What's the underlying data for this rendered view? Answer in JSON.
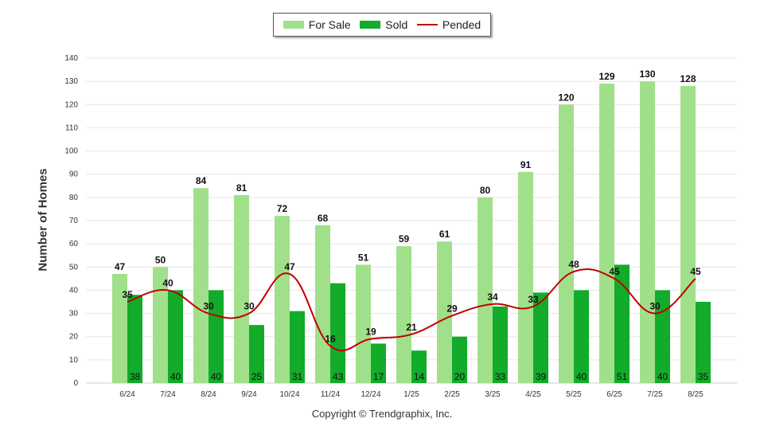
{
  "chart_data": {
    "type": "bar",
    "categories": [
      "6/24",
      "7/24",
      "8/24",
      "9/24",
      "10/24",
      "11/24",
      "12/24",
      "1/25",
      "2/25",
      "3/25",
      "4/25",
      "5/25",
      "6/25",
      "7/25",
      "8/25"
    ],
    "series": [
      {
        "name": "For Sale",
        "type": "bar",
        "color": "#a0e08a",
        "values": [
          47,
          50,
          84,
          81,
          72,
          68,
          51,
          59,
          61,
          80,
          91,
          120,
          129,
          130,
          128
        ]
      },
      {
        "name": "Sold",
        "type": "bar",
        "color": "#12ab2a",
        "values": [
          38,
          40,
          40,
          25,
          31,
          43,
          17,
          14,
          20,
          33,
          39,
          40,
          51,
          40,
          35
        ]
      },
      {
        "name": "Pended",
        "type": "line",
        "color": "#c00000",
        "values": [
          35,
          40,
          30,
          30,
          47,
          16,
          19,
          21,
          29,
          34,
          33,
          48,
          45,
          30,
          45
        ]
      }
    ],
    "ylabel": "Number of Homes",
    "xlabel": "",
    "ylim": [
      0,
      140
    ],
    "yticks": [
      0,
      10,
      20,
      30,
      40,
      50,
      60,
      70,
      80,
      90,
      100,
      110,
      120,
      130,
      140
    ],
    "grid": true,
    "legend": "top-center"
  },
  "footer": {
    "copyright": "Copyright © Trendgraphix, Inc."
  }
}
